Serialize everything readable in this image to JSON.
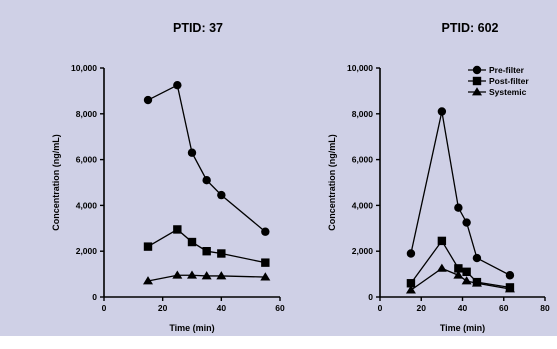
{
  "chart_data": [
    {
      "type": "line",
      "title": "PTID: 37",
      "xlabel": "Time (min)",
      "ylabel": "Concentration (ng/mL)",
      "xlim": [
        0,
        60
      ],
      "ylim": [
        0,
        10000
      ],
      "xticks": [
        "0",
        "20",
        "40",
        "60"
      ],
      "yticks": [
        "0",
        "2,000",
        "4,000",
        "6,000",
        "8,000",
        "10,000"
      ],
      "series": [
        {
          "marker": "circle",
          "x": [
            15,
            25,
            30,
            35,
            40,
            55
          ],
          "y": [
            8600,
            9250,
            6300,
            5100,
            4450,
            2850
          ]
        },
        {
          "marker": "square",
          "x": [
            15,
            25,
            30,
            35,
            40,
            55
          ],
          "y": [
            2200,
            2950,
            2400,
            2000,
            1900,
            1500
          ]
        },
        {
          "marker": "triangle",
          "x": [
            15,
            25,
            30,
            35,
            40,
            55
          ],
          "y": [
            700,
            950,
            950,
            920,
            920,
            870
          ]
        }
      ]
    },
    {
      "type": "line",
      "title": "PTID: 602",
      "xlabel": "Time (min)",
      "ylabel": "Concentration (ng/mL)",
      "xlim": [
        0,
        80
      ],
      "ylim": [
        0,
        10000
      ],
      "xticks": [
        "0",
        "20",
        "40",
        "60",
        "80"
      ],
      "yticks": [
        "0",
        "2,000",
        "4,000",
        "6,000",
        "8,000",
        "10,000"
      ],
      "legend_position": "top-right",
      "series": [
        {
          "name": "Pre-filter",
          "marker": "circle",
          "x": [
            15,
            30,
            38,
            42,
            47,
            63
          ],
          "y": [
            1900,
            8100,
            3900,
            3250,
            1700,
            950
          ]
        },
        {
          "name": "Post-filter",
          "marker": "square",
          "x": [
            15,
            30,
            38,
            42,
            47,
            63
          ],
          "y": [
            600,
            2450,
            1250,
            1100,
            650,
            420
          ]
        },
        {
          "name": "Systemic",
          "marker": "triangle",
          "x": [
            15,
            30,
            38,
            42,
            47,
            63
          ],
          "y": [
            300,
            1250,
            950,
            700,
            600,
            350
          ]
        }
      ]
    }
  ]
}
